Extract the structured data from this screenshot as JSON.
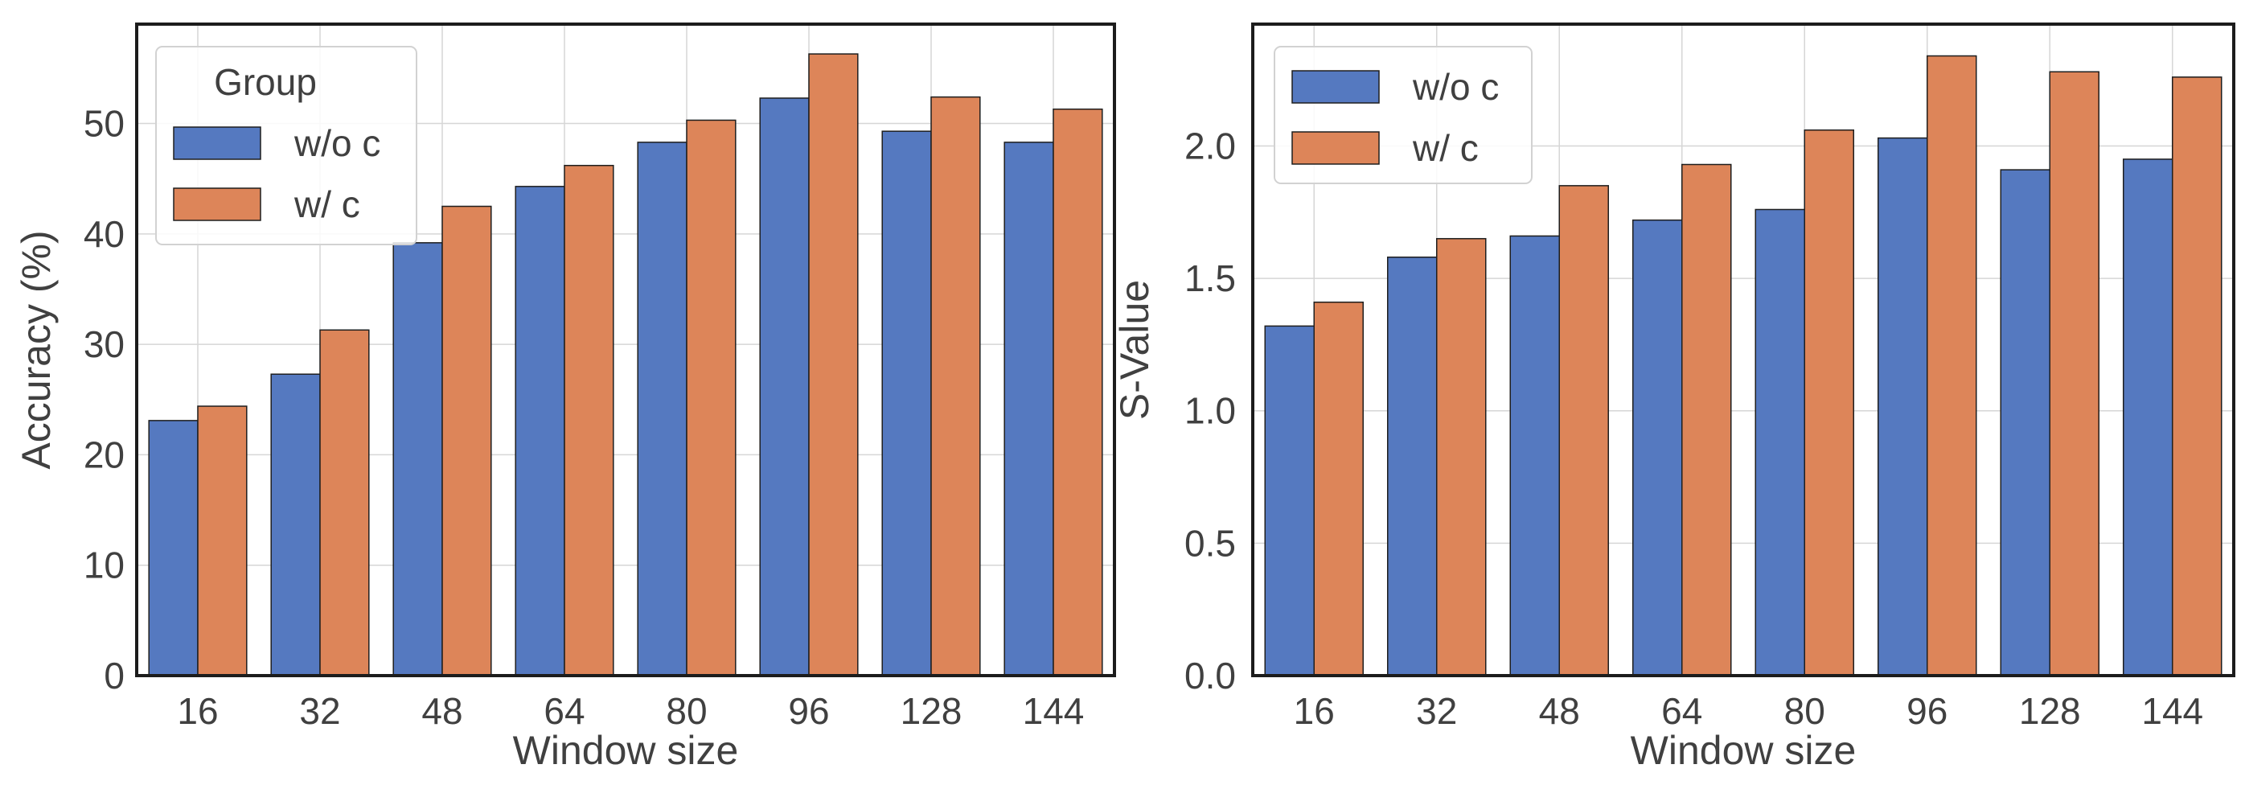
{
  "colors": {
    "series_0": "#5579c0",
    "series_1": "#dd8559",
    "grid": "#d6d6d6",
    "axis": "#1c1c1c",
    "text": "#404040"
  },
  "chart_data": [
    {
      "type": "bar",
      "title": "",
      "xlabel": "Window size",
      "ylabel": "Accuracy (%)",
      "categories": [
        "16",
        "32",
        "48",
        "64",
        "80",
        "96",
        "128",
        "144"
      ],
      "ylim": [
        0,
        59
      ],
      "yticks": [
        0,
        10,
        20,
        30,
        40,
        50
      ],
      "ytick_labels": [
        "0",
        "10",
        "20",
        "30",
        "40",
        "50"
      ],
      "legend": {
        "title": "Group",
        "position": "top-left"
      },
      "series": [
        {
          "name": "w/o c",
          "values": [
            23.1,
            27.3,
            39.2,
            44.3,
            48.3,
            52.3,
            49.3,
            48.3
          ]
        },
        {
          "name": "w/ c",
          "values": [
            24.4,
            31.3,
            42.5,
            46.2,
            50.3,
            56.3,
            52.4,
            51.3
          ]
        }
      ]
    },
    {
      "type": "bar",
      "title": "",
      "xlabel": "Window size",
      "ylabel": "S-Value",
      "categories": [
        "16",
        "32",
        "48",
        "64",
        "80",
        "96",
        "128",
        "144"
      ],
      "ylim": [
        0,
        2.46
      ],
      "yticks": [
        0,
        0.5,
        1.0,
        1.5,
        2.0
      ],
      "ytick_labels": [
        "0.0",
        "0.5",
        "1.0",
        "1.5",
        "2.0"
      ],
      "legend": {
        "title": "",
        "position": "top-left"
      },
      "series": [
        {
          "name": "w/o c",
          "values": [
            1.32,
            1.58,
            1.66,
            1.72,
            1.76,
            2.03,
            1.91,
            1.95
          ]
        },
        {
          "name": "w/ c",
          "values": [
            1.41,
            1.65,
            1.85,
            1.93,
            2.06,
            2.34,
            2.28,
            2.26
          ]
        }
      ]
    }
  ]
}
